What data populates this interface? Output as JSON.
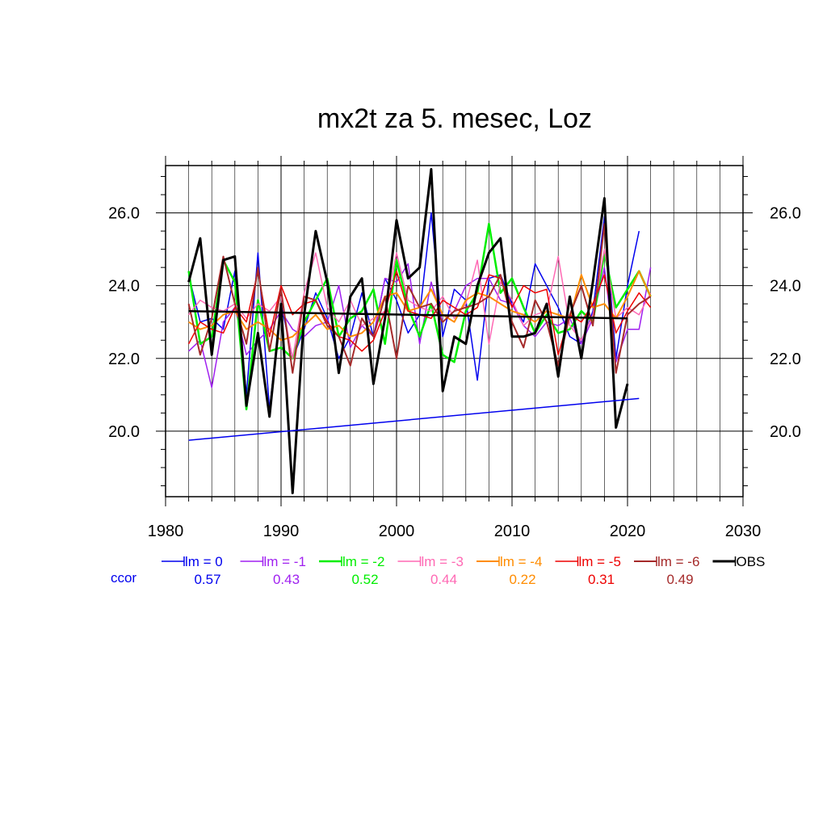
{
  "chart_data": {
    "type": "line",
    "title": "mx2t za 5. mesec, Loz",
    "xlabel": "",
    "ylabel": "",
    "xlim": [
      1980,
      2030
    ],
    "ylim": [
      18.2,
      27.3
    ],
    "x_ticks": [
      "1980",
      "1990",
      "2000",
      "2010",
      "2020",
      "2030"
    ],
    "y_ticks": [
      "20.0",
      "22.0",
      "24.0",
      "26.0"
    ],
    "grid": true,
    "legend_position": "bottom",
    "ccor_label": "ccor",
    "series": [
      {
        "name": "lm = 0",
        "color": "#0000ee",
        "ccor": "0.57",
        "width": 1.5,
        "x": [
          1982,
          1983,
          1984,
          1985,
          1986,
          1987,
          1988,
          1989,
          1990,
          1991,
          1992,
          1993,
          1994,
          1995,
          1996,
          1997,
          1998,
          1999,
          2000,
          2001,
          2002,
          2003,
          2004,
          2005,
          2006,
          2007,
          2008,
          2009,
          2010,
          2011,
          2012,
          2013,
          2014,
          2015,
          2016,
          2017,
          2018,
          2019,
          2020,
          2021
        ],
        "values": [
          24.3,
          23.0,
          23.1,
          22.8,
          24.4,
          21.0,
          24.9,
          20.6,
          23.5,
          22.0,
          22.8,
          23.8,
          23.1,
          22.0,
          22.6,
          23.8,
          22.6,
          24.2,
          23.6,
          22.7,
          23.2,
          26.0,
          22.6,
          23.9,
          23.6,
          21.4,
          24.2,
          24.3,
          23.5,
          23.0,
          24.6,
          24.0,
          23.4,
          22.6,
          22.4,
          23.3,
          25.9,
          22.0,
          24.0,
          25.5
        ]
      },
      {
        "name": "lm = -1",
        "color": "#a020f0",
        "ccor": "0.43",
        "width": 1.5,
        "x": [
          1982,
          1983,
          1984,
          1985,
          1986,
          1987,
          1988,
          1989,
          1990,
          1991,
          1992,
          1993,
          1994,
          1995,
          1996,
          1997,
          1998,
          1999,
          2000,
          2001,
          2002,
          2003,
          2004,
          2005,
          2006,
          2007,
          2008,
          2009,
          2010,
          2011,
          2012,
          2013,
          2014,
          2015,
          2016,
          2017,
          2018,
          2019,
          2020,
          2021,
          2022
        ],
        "values": [
          22.2,
          22.5,
          21.2,
          23.0,
          23.4,
          22.1,
          22.5,
          22.8,
          23.3,
          22.8,
          22.6,
          22.9,
          23.0,
          24.0,
          22.3,
          22.9,
          22.6,
          24.2,
          24.1,
          24.6,
          22.4,
          24.1,
          23.0,
          23.3,
          24.0,
          24.2,
          24.2,
          23.6,
          23.5,
          22.9,
          22.6,
          23.0,
          22.9,
          23.1,
          22.4,
          23.1,
          24.5,
          21.9,
          22.8,
          22.8,
          24.5
        ]
      },
      {
        "name": "lm = -2",
        "color": "#00ee00",
        "ccor": "0.52",
        "width": 2.5,
        "x": [
          1982,
          1983,
          1984,
          1985,
          1986,
          1987,
          1988,
          1989,
          1990,
          1991,
          1992,
          1993,
          1994,
          1995,
          1996,
          1997,
          1998,
          1999,
          2000,
          2001,
          2002,
          2003,
          2004,
          2005,
          2006,
          2007,
          2008,
          2009,
          2010,
          2011,
          2012,
          2013,
          2014,
          2015,
          2016,
          2017,
          2018,
          2019,
          2020,
          2021,
          2022
        ],
        "values": [
          24.4,
          22.4,
          22.6,
          24.7,
          24.1,
          20.6,
          23.6,
          22.2,
          22.3,
          22.0,
          23.0,
          23.6,
          24.2,
          22.6,
          23.1,
          23.3,
          23.9,
          22.4,
          24.7,
          23.4,
          22.6,
          23.5,
          22.1,
          21.9,
          23.3,
          23.8,
          25.7,
          23.8,
          24.2,
          23.4,
          22.7,
          23.2,
          22.7,
          22.8,
          23.3,
          23.0,
          24.9,
          23.4,
          23.9,
          24.4,
          23.7
        ]
      },
      {
        "name": "lm = -3",
        "color": "#ff69b4",
        "ccor": "0.44",
        "width": 1.5,
        "x": [
          1982,
          1983,
          1984,
          1985,
          1986,
          1987,
          1988,
          1989,
          1990,
          1991,
          1992,
          1993,
          1994,
          1995,
          1996,
          1997,
          1998,
          1999,
          2000,
          2001,
          2002,
          2003,
          2004,
          2005,
          2006,
          2007,
          2008,
          2009,
          2010,
          2011,
          2012,
          2013,
          2014,
          2015,
          2016,
          2017,
          2018,
          2019,
          2020,
          2021,
          2022
        ],
        "values": [
          23.2,
          23.6,
          23.4,
          23.3,
          23.5,
          23.1,
          23.5,
          23.3,
          23.7,
          22.0,
          23.8,
          24.9,
          23.4,
          23.0,
          23.6,
          22.9,
          23.1,
          23.3,
          24.9,
          23.6,
          23.4,
          23.3,
          23.7,
          23.1,
          23.5,
          24.7,
          22.4,
          24.1,
          23.6,
          22.9,
          23.2,
          23.3,
          24.8,
          22.9,
          22.5,
          23.2,
          25.0,
          23.1,
          23.4,
          23.2,
          23.8
        ]
      },
      {
        "name": "lm = -4",
        "color": "#ff8c00",
        "ccor": "0.22",
        "width": 2,
        "x": [
          1982,
          1983,
          1984,
          1985,
          1986,
          1987,
          1988,
          1989,
          1990,
          1991,
          1992,
          1993,
          1994,
          1995,
          1996,
          1997,
          1998,
          1999,
          2000,
          2001,
          2002,
          2003,
          2004,
          2005,
          2006,
          2007,
          2008,
          2009,
          2010,
          2011,
          2012,
          2013,
          2014,
          2015,
          2016,
          2017,
          2018,
          2019,
          2020,
          2021,
          2022
        ],
        "values": [
          23.0,
          22.8,
          22.9,
          23.2,
          23.3,
          22.8,
          23.0,
          22.8,
          22.5,
          22.6,
          22.9,
          23.2,
          22.8,
          22.9,
          22.6,
          22.7,
          23.0,
          23.7,
          23.8,
          23.3,
          23.4,
          23.9,
          23.2,
          23.0,
          23.6,
          23.8,
          23.7,
          23.5,
          23.3,
          23.2,
          23.0,
          23.3,
          23.2,
          23.1,
          24.3,
          23.4,
          23.5,
          23.1,
          23.7,
          24.4,
          23.7
        ]
      },
      {
        "name": "lm = -5",
        "color": "#ee0000",
        "ccor": "0.31",
        "width": 1.5,
        "x": [
          1982,
          1983,
          1984,
          1985,
          1986,
          1987,
          1988,
          1989,
          1990,
          1991,
          1992,
          1993,
          1994,
          1995,
          1996,
          1997,
          1998,
          1999,
          2000,
          2001,
          2002,
          2003,
          2004,
          2005,
          2006,
          2007,
          2008,
          2009,
          2010,
          2011,
          2012,
          2013,
          2014,
          2015,
          2016,
          2017,
          2018,
          2019,
          2020,
          2021,
          2022
        ],
        "values": [
          22.4,
          23.0,
          22.8,
          22.7,
          23.4,
          23.0,
          24.4,
          22.6,
          24.0,
          23.2,
          23.5,
          23.6,
          23.0,
          22.6,
          22.5,
          22.2,
          22.5,
          23.3,
          24.4,
          23.3,
          23.2,
          23.1,
          23.6,
          23.4,
          23.2,
          23.4,
          24.3,
          24.2,
          23.4,
          24.0,
          23.8,
          23.9,
          22.1,
          23.2,
          23.0,
          23.5,
          24.3,
          22.7,
          23.3,
          23.8,
          23.4
        ]
      },
      {
        "name": "lm = -6",
        "color": "#a52a2a",
        "ccor": "0.49",
        "width": 2,
        "x": [
          1982,
          1983,
          1984,
          1985,
          1986,
          1987,
          1988,
          1989,
          1990,
          1991,
          1992,
          1993,
          1994,
          1995,
          1996,
          1997,
          1998,
          1999,
          2000,
          2001,
          2002,
          2003,
          2004,
          2005,
          2006,
          2007,
          2008,
          2009,
          2010,
          2011,
          2012,
          2013,
          2014,
          2015,
          2016,
          2017,
          2018,
          2019,
          2020,
          2021,
          2022
        ],
        "values": [
          23.5,
          22.1,
          23.1,
          24.8,
          23.5,
          22.4,
          24.5,
          22.2,
          23.9,
          21.6,
          23.7,
          23.6,
          22.9,
          22.6,
          21.8,
          23.1,
          22.6,
          23.7,
          22.0,
          24.0,
          23.4,
          23.5,
          23.0,
          23.3,
          23.4,
          23.5,
          23.7,
          24.3,
          23.0,
          22.3,
          23.6,
          23.0,
          21.8,
          23.2,
          24.0,
          22.9,
          25.7,
          21.6,
          23.2,
          23.5,
          23.7
        ]
      },
      {
        "name": "OBS",
        "color": "#000000",
        "ccor": "",
        "width": 3,
        "x": [
          1982,
          1983,
          1984,
          1985,
          1986,
          1987,
          1988,
          1989,
          1990,
          1991,
          1992,
          1993,
          1994,
          1995,
          1996,
          1997,
          1998,
          1999,
          2000,
          2001,
          2002,
          2003,
          2004,
          2005,
          2006,
          2007,
          2008,
          2009,
          2010,
          2011,
          2012,
          2013,
          2014,
          2015,
          2016,
          2017,
          2018,
          2019,
          2020
        ],
        "values": [
          24.1,
          25.3,
          22.1,
          24.7,
          24.8,
          20.7,
          22.7,
          20.4,
          23.5,
          18.3,
          23.2,
          25.5,
          24.1,
          21.6,
          23.7,
          24.2,
          21.3,
          23.1,
          25.8,
          24.2,
          24.5,
          27.2,
          21.1,
          22.6,
          22.4,
          24.0,
          24.9,
          25.3,
          22.6,
          22.6,
          22.7,
          23.5,
          21.5,
          23.7,
          22.0,
          24.1,
          26.4,
          20.1,
          21.3
        ]
      }
    ],
    "trend_lines": [
      {
        "color": "#0000ee",
        "width": 1.5,
        "x": [
          1982,
          2021
        ],
        "values": [
          19.75,
          20.9
        ]
      },
      {
        "color": "#000000",
        "width": 2.5,
        "x": [
          1982,
          2020
        ],
        "values": [
          23.3,
          23.1
        ]
      }
    ]
  }
}
